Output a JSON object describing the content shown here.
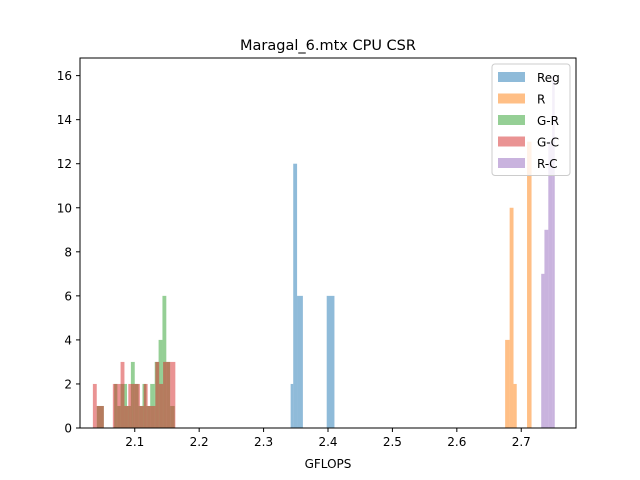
{
  "chart_data": {
    "type": "histogram",
    "title": "Maragal_6.mtx CPU CSR",
    "xlabel": "GFLOPS",
    "ylabel": "",
    "xlim": [
      2.015,
      2.785
    ],
    "ylim": [
      0,
      16.8
    ],
    "xticks": [
      2.1,
      2.2,
      2.3,
      2.4,
      2.5,
      2.6,
      2.7
    ],
    "yticks": [
      0,
      2,
      4,
      6,
      8,
      10,
      12,
      14,
      16
    ],
    "grid": false,
    "legend_position": "top-right",
    "bar_opacity": 0.5,
    "series": [
      {
        "name": "Reg",
        "color": "#1f77b4",
        "bins": [
          {
            "x0": 2.342,
            "x1": 2.346,
            "count": 2
          },
          {
            "x0": 2.346,
            "x1": 2.352,
            "count": 12
          },
          {
            "x0": 2.352,
            "x1": 2.361,
            "count": 6
          },
          {
            "x0": 2.398,
            "x1": 2.41,
            "count": 6
          }
        ]
      },
      {
        "name": "R",
        "color": "#ff7f0e",
        "bins": [
          {
            "x0": 2.675,
            "x1": 2.682,
            "count": 4
          },
          {
            "x0": 2.682,
            "x1": 2.688,
            "count": 10
          },
          {
            "x0": 2.688,
            "x1": 2.693,
            "count": 2
          },
          {
            "x0": 2.709,
            "x1": 2.716,
            "count": 13
          }
        ]
      },
      {
        "name": "G-R",
        "color": "#2ca02c",
        "bins": [
          {
            "x0": 2.041,
            "x1": 2.052,
            "count": 1
          },
          {
            "x0": 2.068,
            "x1": 2.073,
            "count": 2
          },
          {
            "x0": 2.073,
            "x1": 2.078,
            "count": 1
          },
          {
            "x0": 2.078,
            "x1": 2.088,
            "count": 2
          },
          {
            "x0": 2.088,
            "x1": 2.094,
            "count": 1
          },
          {
            "x0": 2.094,
            "x1": 2.1,
            "count": 3
          },
          {
            "x0": 2.1,
            "x1": 2.106,
            "count": 2
          },
          {
            "x0": 2.106,
            "x1": 2.112,
            "count": 1
          },
          {
            "x0": 2.112,
            "x1": 2.118,
            "count": 2
          },
          {
            "x0": 2.118,
            "x1": 2.124,
            "count": 1
          },
          {
            "x0": 2.124,
            "x1": 2.131,
            "count": 2
          },
          {
            "x0": 2.131,
            "x1": 2.137,
            "count": 3
          },
          {
            "x0": 2.137,
            "x1": 2.143,
            "count": 4
          },
          {
            "x0": 2.143,
            "x1": 2.149,
            "count": 6
          },
          {
            "x0": 2.149,
            "x1": 2.155,
            "count": 3
          },
          {
            "x0": 2.155,
            "x1": 2.162,
            "count": 1
          }
        ]
      },
      {
        "name": "G-C",
        "color": "#d62728",
        "bins": [
          {
            "x0": 2.035,
            "x1": 2.041,
            "count": 2
          },
          {
            "x0": 2.041,
            "x1": 2.052,
            "count": 1
          },
          {
            "x0": 2.066,
            "x1": 2.072,
            "count": 2
          },
          {
            "x0": 2.072,
            "x1": 2.078,
            "count": 2
          },
          {
            "x0": 2.078,
            "x1": 2.084,
            "count": 3
          },
          {
            "x0": 2.084,
            "x1": 2.09,
            "count": 1
          },
          {
            "x0": 2.09,
            "x1": 2.096,
            "count": 2
          },
          {
            "x0": 2.096,
            "x1": 2.102,
            "count": 2
          },
          {
            "x0": 2.102,
            "x1": 2.108,
            "count": 2
          },
          {
            "x0": 2.108,
            "x1": 2.114,
            "count": 1
          },
          {
            "x0": 2.114,
            "x1": 2.12,
            "count": 2
          },
          {
            "x0": 2.12,
            "x1": 2.126,
            "count": 1
          },
          {
            "x0": 2.126,
            "x1": 2.132,
            "count": 1
          },
          {
            "x0": 2.132,
            "x1": 2.138,
            "count": 3
          },
          {
            "x0": 2.138,
            "x1": 2.144,
            "count": 2
          },
          {
            "x0": 2.144,
            "x1": 2.15,
            "count": 3
          },
          {
            "x0": 2.15,
            "x1": 2.156,
            "count": 3
          },
          {
            "x0": 2.156,
            "x1": 2.163,
            "count": 3
          }
        ]
      },
      {
        "name": "R-C",
        "color": "#9467bd",
        "bins": [
          {
            "x0": 2.731,
            "x1": 2.736,
            "count": 7
          },
          {
            "x0": 2.736,
            "x1": 2.742,
            "count": 9
          },
          {
            "x0": 2.742,
            "x1": 2.748,
            "count": 13
          },
          {
            "x0": 2.748,
            "x1": 2.752,
            "count": 16
          }
        ]
      }
    ]
  }
}
